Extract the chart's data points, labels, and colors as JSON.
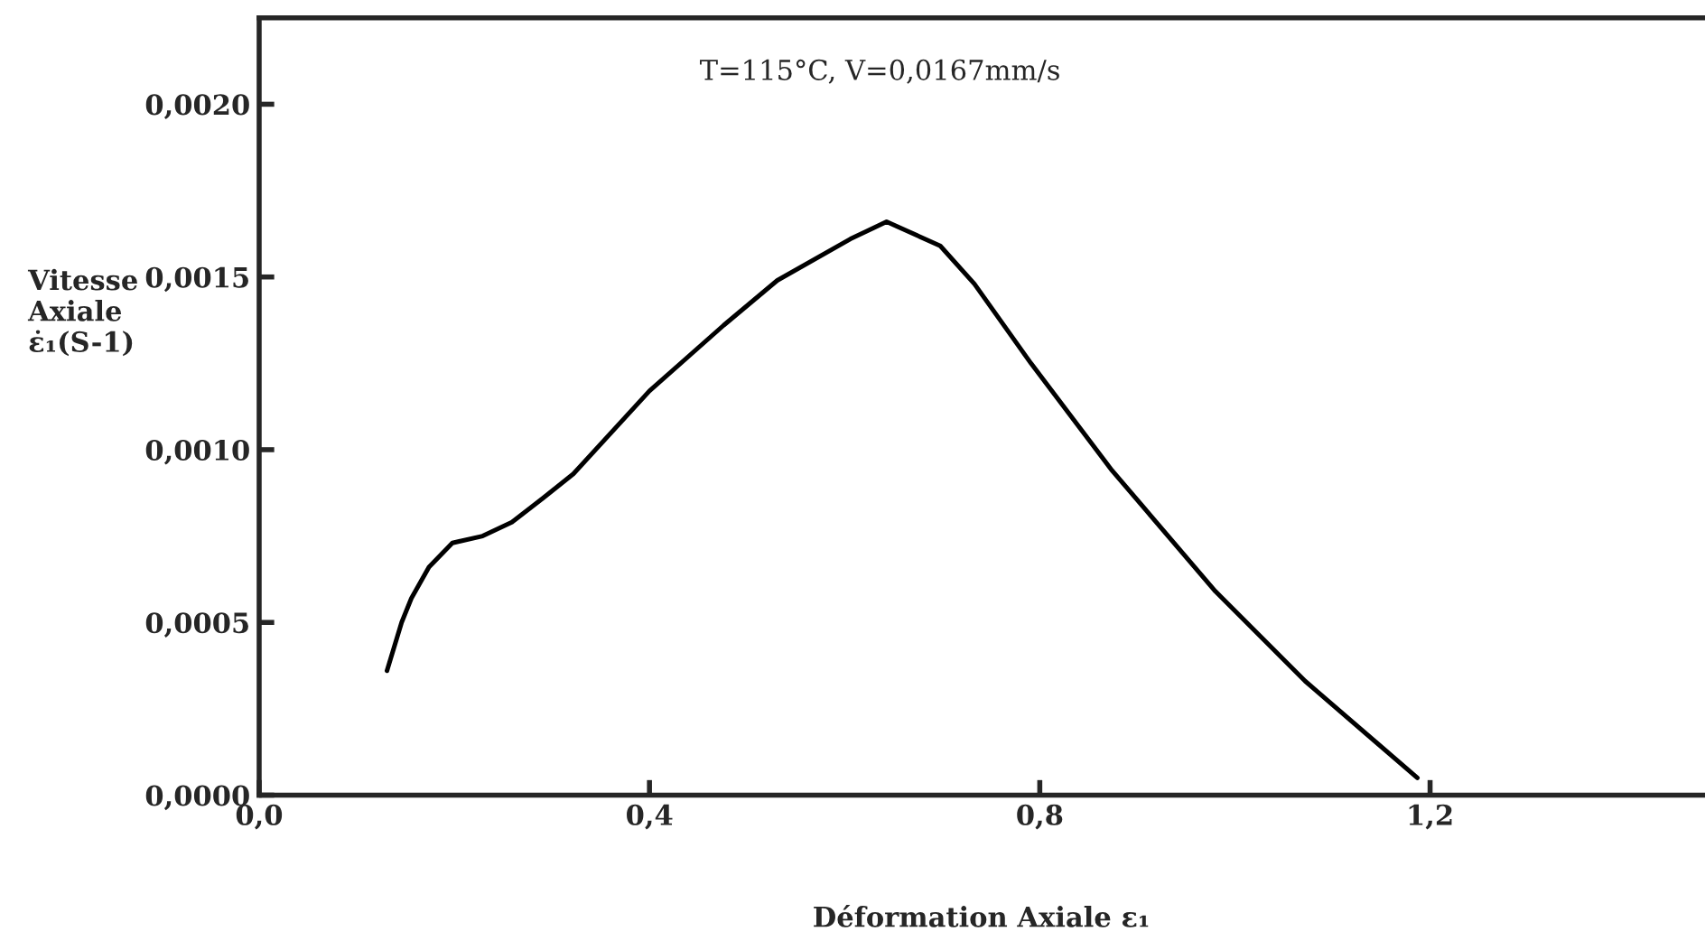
{
  "chart_data": {
    "type": "line",
    "xlabel": "Déformation Axiale ε₁",
    "ylabel": "Vitesse\nAxiale\nε̇₁(S-1)",
    "annotations": [
      "T=115°C, V=0,0167mm/s"
    ],
    "series": [
      {
        "color": "#000000",
        "x": [
          0.131,
          0.146,
          0.156,
          0.174,
          0.198,
          0.229,
          0.259,
          0.291,
          0.322,
          0.4,
          0.476,
          0.531,
          0.606,
          0.643,
          0.698,
          0.733,
          0.791,
          0.874,
          0.98,
          1.072,
          1.187
        ],
        "values": [
          0.00036,
          0.0005,
          0.00057,
          0.00066,
          0.00073,
          0.00075,
          0.00079,
          0.00086,
          0.00093,
          0.00117,
          0.00136,
          0.00149,
          0.00161,
          0.00166,
          0.00159,
          0.00148,
          0.00125,
          0.00094,
          0.00059,
          0.00033,
          5e-05
        ]
      }
    ],
    "xlim": [
      0,
      1.48
    ],
    "ylim": [
      0,
      0.00225
    ],
    "xticks": [
      {
        "value": 0,
        "label": "0,0"
      },
      {
        "value": 0.4,
        "label": "0,4"
      },
      {
        "value": 0.8,
        "label": "0,8"
      },
      {
        "value": 1.2,
        "label": "1,2"
      }
    ],
    "yticks": [
      {
        "value": 0,
        "label": "0,0000"
      },
      {
        "value": 0.0005,
        "label": "0,0005"
      },
      {
        "value": 0.001,
        "label": "0,0010"
      },
      {
        "value": 0.0015,
        "label": "0,0015"
      },
      {
        "value": 0.002,
        "label": "0,0020"
      }
    ],
    "grid": false,
    "legend": false,
    "marker": "none",
    "line_style": "solid"
  }
}
